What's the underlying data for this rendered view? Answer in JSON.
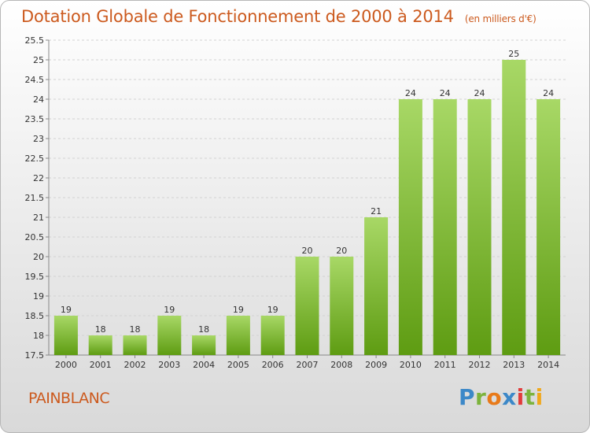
{
  "header": {
    "title": "Dotation Globale de Fonctionnement de 2000 à 2014",
    "subtitle": "(en milliers d'€)"
  },
  "footer": {
    "commune": "PAINBLANC",
    "logo": "Proxiti"
  },
  "colors": {
    "title": "#cc5a1e",
    "bar_top": "#a8d866",
    "bar_bottom": "#5e9c12"
  },
  "chart_data": {
    "type": "bar",
    "categories": [
      "2000",
      "2001",
      "2002",
      "2003",
      "2004",
      "2005",
      "2006",
      "2007",
      "2008",
      "2009",
      "2010",
      "2011",
      "2012",
      "2013",
      "2014"
    ],
    "values": [
      18.5,
      18.0,
      18.0,
      18.5,
      18.0,
      18.5,
      18.5,
      20.0,
      20.0,
      21.0,
      24.0,
      24.0,
      24.0,
      25.0,
      24.0
    ],
    "data_labels": [
      "19",
      "18",
      "18",
      "19",
      "18",
      "19",
      "19",
      "20",
      "20",
      "21",
      "24",
      "24",
      "24",
      "25",
      "24"
    ],
    "ylim": [
      17.5,
      25.5
    ],
    "yticks": [
      "17.5",
      "18",
      "18.5",
      "19",
      "19.5",
      "20",
      "20.5",
      "21",
      "21.5",
      "22",
      "22.5",
      "23",
      "23.5",
      "24",
      "24.5",
      "25",
      "25.5"
    ],
    "grid": true
  }
}
